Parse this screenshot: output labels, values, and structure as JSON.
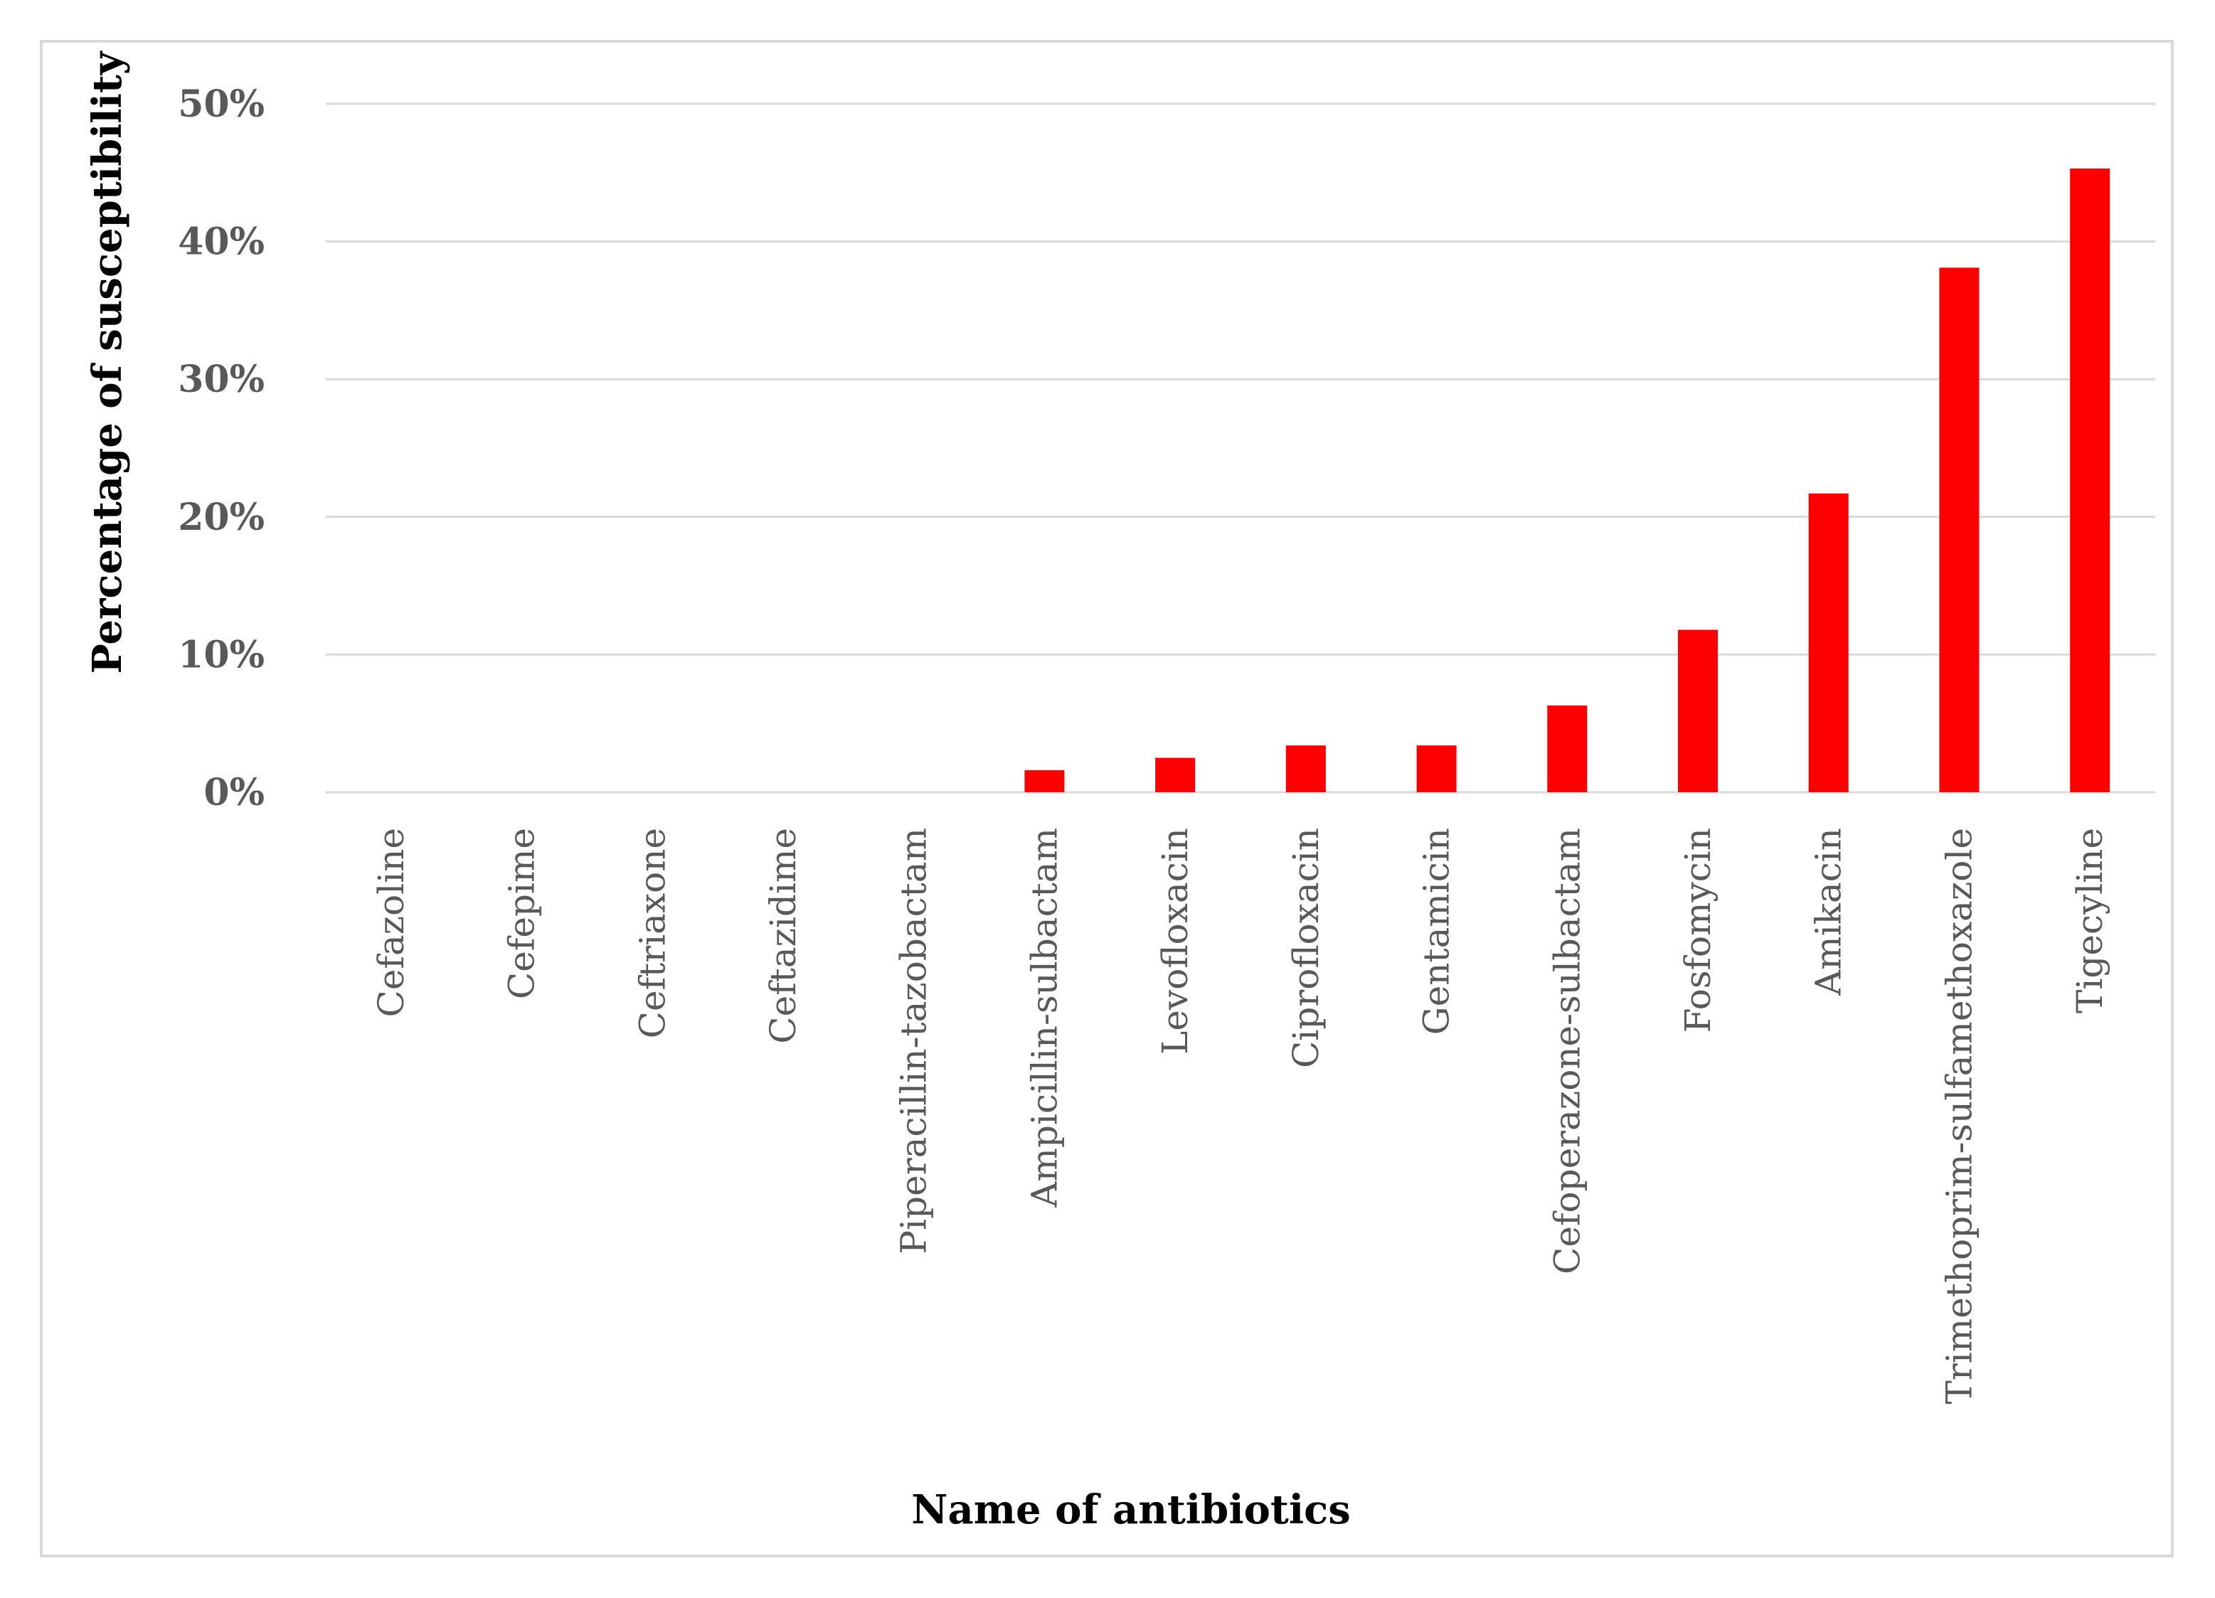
{
  "chart_data": {
    "type": "bar",
    "title": "",
    "xlabel": "Name of antibiotics",
    "ylabel": "Percentage of susceptibility",
    "categories": [
      "Cefazoline",
      "Cefepime",
      "Ceftriaxone",
      "Ceftazidime",
      "Piperacillin-tazobactam",
      "Ampicillin-sulbactam",
      "Levofloxacin",
      "Ciprofloxacin",
      "Gentamicin",
      "Cefoperazone-sulbactam",
      "Fosfomycin",
      "Amikacin",
      "Trimethoprim-sulfamethoxazole",
      "Tigecyline"
    ],
    "values": [
      0,
      0,
      0,
      0,
      0,
      1.6,
      2.5,
      3.4,
      3.4,
      6.3,
      11.8,
      21.7,
      38.1,
      45.3
    ],
    "ylim": [
      0,
      50
    ],
    "yticks": [
      "0%",
      "10%",
      "20%",
      "30%",
      "40%",
      "50%"
    ],
    "ytick_values": [
      0,
      10,
      20,
      30,
      40,
      50
    ],
    "grid": true,
    "legend": "none",
    "colors": {
      "bar": "#ff0000",
      "grid": "#d9d9d9",
      "tick_text": "#595959"
    }
  }
}
